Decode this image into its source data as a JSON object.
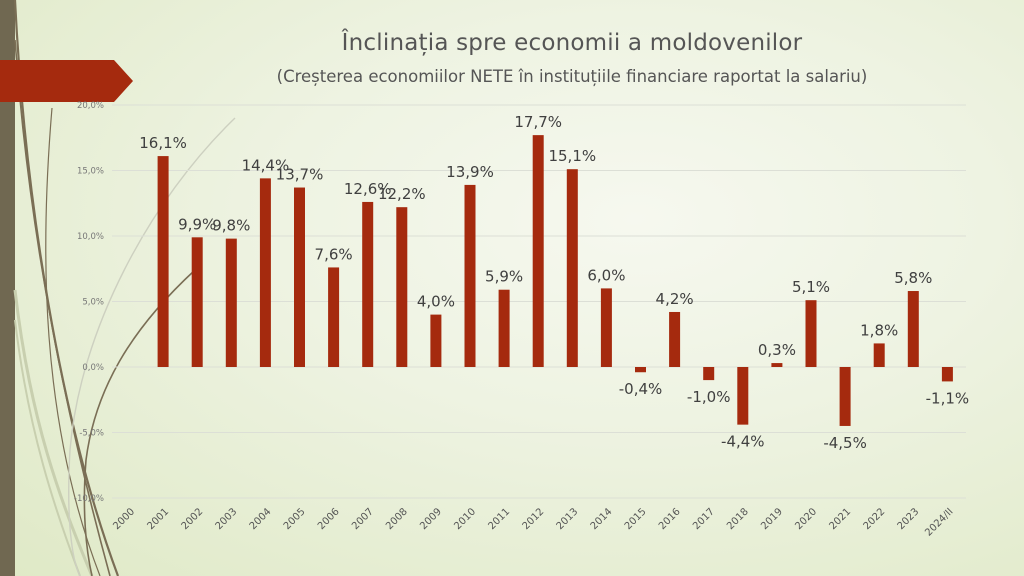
{
  "chart_data": {
    "type": "bar",
    "title": "Înclinația spre economii a moldovenilor",
    "subtitle": "(Creșterea economiilor NETE în instituțiile financiare raportat la salariu)",
    "xlabel": "",
    "ylabel": "",
    "ylim": [
      -10,
      20
    ],
    "yticks": [
      20,
      15,
      10,
      5,
      0,
      -5,
      -10
    ],
    "ytick_labels": [
      "20,0%",
      "15,0%",
      "10,0%",
      "5,0%",
      "0,0%",
      "-5,0%",
      "-10,0%"
    ],
    "grid": true,
    "legend": "none",
    "bar_color": "#a52a0e",
    "categories": [
      "2000",
      "2001",
      "2002",
      "2003",
      "2004",
      "2005",
      "2006",
      "2007",
      "2008",
      "2009",
      "2010",
      "2011",
      "2012",
      "2013",
      "2014",
      "2015",
      "2016",
      "2017",
      "2018",
      "2019",
      "2020",
      "2021",
      "2022",
      "2023",
      "2024/II"
    ],
    "values": [
      null,
      16.1,
      9.9,
      9.8,
      14.4,
      13.7,
      7.6,
      12.6,
      12.2,
      4.0,
      13.9,
      5.9,
      17.7,
      15.1,
      6.0,
      -0.4,
      4.2,
      -1.0,
      -4.4,
      0.3,
      5.1,
      -4.5,
      1.8,
      5.8,
      -1.1
    ],
    "data_labels": [
      "",
      "16,1%",
      "9,9%",
      "9,8%",
      "14,4%",
      "13,7%",
      "7,6%",
      "12,6%",
      "12,2%",
      "4,0%",
      "13,9%",
      "5,9%",
      "17,7%",
      "15,1%",
      "6,0%",
      "-0,4%",
      "4,2%",
      "-1,0%",
      "-4,4%",
      "0,3%",
      "5,1%",
      "-4,5%",
      "1,8%",
      "5,8%",
      "-1,1%"
    ]
  },
  "colors": {
    "accent": "#a52a0e",
    "side_bar": "#706851",
    "deco_line": "#7a6e55"
  }
}
